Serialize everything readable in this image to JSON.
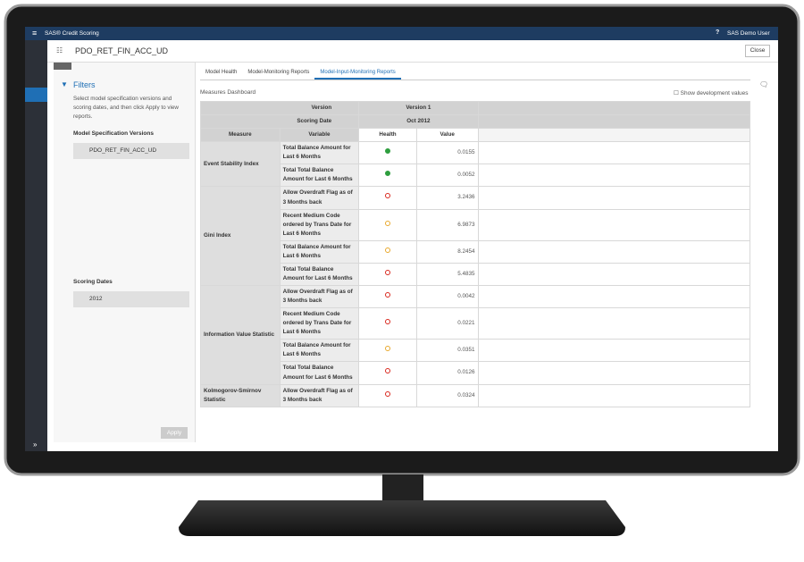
{
  "app": {
    "title": "SAS® Credit Scoring",
    "user": "SAS Demo User"
  },
  "header": {
    "title": "PDO_RET_FIN_ACC_UD",
    "close": "Close"
  },
  "filters": {
    "title": "Filters",
    "description": "Select model specification versions and scoring dates, and then click Apply to view reports.",
    "versions_label": "Model Specification Versions",
    "versions": [
      "PDO_RET_FIN_ACC_UD"
    ],
    "dates_label": "Scoring Dates",
    "dates": [
      "2012"
    ],
    "apply": "Apply"
  },
  "tabs": [
    "Model Health",
    "Model-Monitoring Reports",
    "Model-Input-Monitoring Reports"
  ],
  "active_tab": 2,
  "dashboard": {
    "title": "Measures Dashboard",
    "show_dev": "Show development values"
  },
  "table": {
    "version_label": "Version",
    "version": "Version 1",
    "date_label": "Scoring Date",
    "date": "Oct 2012",
    "columns": [
      "Measure",
      "Variable",
      "Health",
      "Value"
    ],
    "groups": [
      {
        "measure": "Event Stability Index",
        "rows": [
          {
            "variable": "Total Balance Amount for Last 6 Months",
            "health": "green",
            "value": "0.0155"
          },
          {
            "variable": "Total Total Balance Amount for Last 6 Months",
            "health": "green",
            "value": "0.0052"
          }
        ]
      },
      {
        "measure": "Gini Index",
        "rows": [
          {
            "variable": "Allow Overdraft Flag as of 3 Months back",
            "health": "red",
            "value": "3.2436"
          },
          {
            "variable": "Recent Medium Code ordered by Trans Date for Last 6 Months",
            "health": "yellow",
            "value": "6.9873"
          },
          {
            "variable": "Total Balance Amount for Last 6 Months",
            "health": "yellow",
            "value": "8.2454"
          },
          {
            "variable": "Total Total Balance Amount for Last 6 Months",
            "health": "red",
            "value": "5.4835"
          }
        ]
      },
      {
        "measure": "Information Value Statistic",
        "rows": [
          {
            "variable": "Allow Overdraft Flag as of 3 Months back",
            "health": "red",
            "value": "0.0042"
          },
          {
            "variable": "Recent Medium Code ordered by Trans Date for Last 6 Months",
            "health": "red",
            "value": "0.0221"
          },
          {
            "variable": "Total Balance Amount for Last 6 Months",
            "health": "yellow",
            "value": "0.0351"
          },
          {
            "variable": "Total Total Balance Amount for Last 6 Months",
            "health": "red",
            "value": "0.0126"
          }
        ]
      },
      {
        "measure": "Kolmogorov-Smirnov Statistic",
        "rows": [
          {
            "variable": "Allow Overdraft Flag as of 3 Months back",
            "health": "red",
            "value": "0.0324"
          }
        ]
      }
    ]
  }
}
